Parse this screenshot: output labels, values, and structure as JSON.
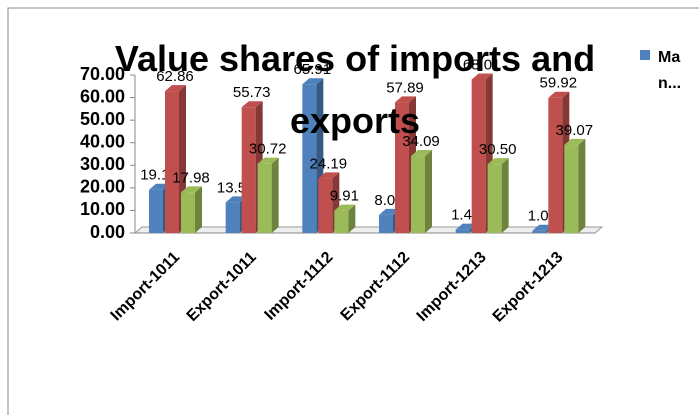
{
  "chart_data": {
    "type": "bar3d",
    "title": "Value shares of imports and exports",
    "categories": [
      "Import-1011",
      "Export-1011",
      "Import-1112",
      "Export-1112",
      "Import-1213",
      "Export-1213"
    ],
    "series": [
      {
        "name": "Ma n...",
        "color": "#4f81bd",
        "values": [
          19.17,
          13.55,
          65.91,
          8.02,
          1.49,
          1.0
        ],
        "value_labels": [
          "19.17",
          "13.55",
          "65.91",
          "8.02",
          "1.49",
          "1.00"
        ]
      },
      {
        "color": "#c0504d",
        "values": [
          62.86,
          55.73,
          24.19,
          57.89,
          68.01,
          59.92
        ],
        "value_labels": [
          "62.86",
          "55.73",
          "24.19",
          "57.89",
          "68.01",
          "59.92"
        ]
      },
      {
        "color": "#9bbb59",
        "values": [
          17.98,
          30.72,
          9.91,
          34.09,
          30.5,
          39.07
        ],
        "value_labels": [
          "17.98",
          "30.72",
          "9.91",
          "34.09",
          "30.50",
          "39.07"
        ]
      }
    ],
    "ylim": [
      0,
      70
    ],
    "yticks": [
      {
        "value": 0,
        "label": "0.00"
      },
      {
        "value": 10,
        "label": "10.00"
      },
      {
        "value": 20,
        "label": "20.00"
      },
      {
        "value": 30,
        "label": "30.00"
      },
      {
        "value": 40,
        "label": "40.00"
      },
      {
        "value": 50,
        "label": "50.00"
      },
      {
        "value": 60,
        "label": "60.00"
      },
      {
        "value": 70,
        "label": "70.00"
      }
    ]
  }
}
